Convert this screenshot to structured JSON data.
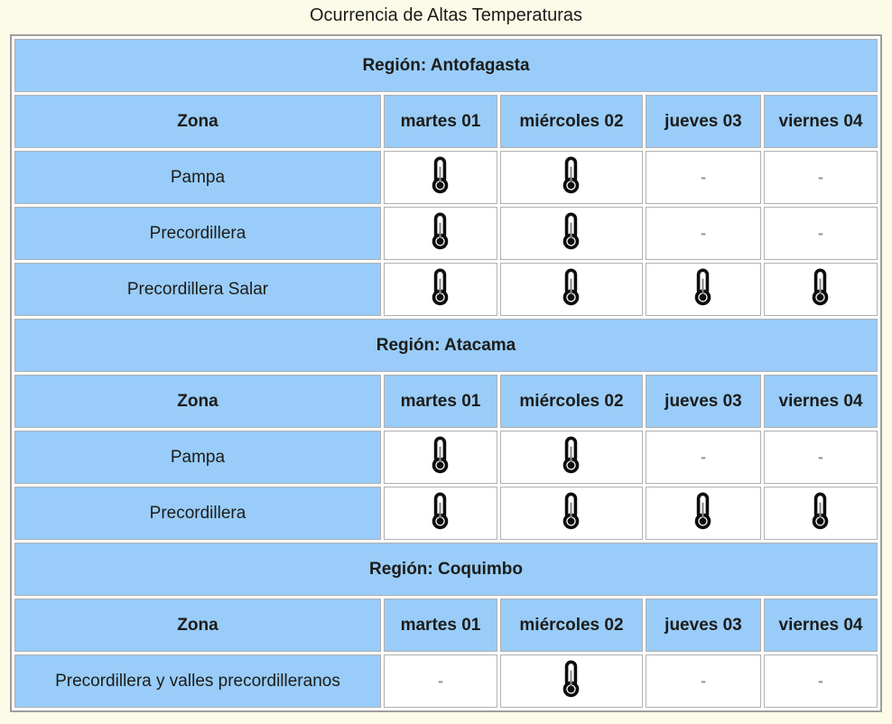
{
  "page": {
    "title": "Ocurrencia de Altas Temperaturas"
  },
  "colors": {
    "header_blue": "#99ccf8",
    "page_background": "#fbfbe8",
    "cell_border": "#b0b0b0",
    "table_border": "#9e9e9e",
    "text_dark": "#1c1c1a",
    "dash_gray": "#9b9b9b",
    "thermometer_black": "#0d0d0d",
    "thermometer_mercury_gray": "#8a8a8a"
  },
  "chart_data": {
    "type": "table",
    "title": "Ocurrencia de Altas Temperaturas",
    "columns": [
      "Zona",
      "martes 01",
      "miércoles 02",
      "jueves 03",
      "viernes 04"
    ],
    "occupied_marker": "thermometer",
    "empty_marker": "-",
    "sections": [
      {
        "region": "Región: Antofagasta",
        "rows": [
          {
            "zone": "Pampa",
            "values": [
              "thermometer",
              "thermometer",
              "-",
              "-"
            ]
          },
          {
            "zone": "Precordillera",
            "values": [
              "thermometer",
              "thermometer",
              "-",
              "-"
            ]
          },
          {
            "zone": "Precordillera Salar",
            "values": [
              "thermometer",
              "thermometer",
              "thermometer",
              "thermometer"
            ]
          }
        ]
      },
      {
        "region": "Región: Atacama",
        "rows": [
          {
            "zone": "Pampa",
            "values": [
              "thermometer",
              "thermometer",
              "-",
              "-"
            ]
          },
          {
            "zone": "Precordillera",
            "values": [
              "thermometer",
              "thermometer",
              "thermometer",
              "thermometer"
            ]
          }
        ]
      },
      {
        "region": "Región: Coquimbo",
        "rows": [
          {
            "zone": "Precordillera y valles precordilleranos",
            "values": [
              "-",
              "thermometer",
              "-",
              "-"
            ]
          }
        ]
      }
    ]
  }
}
